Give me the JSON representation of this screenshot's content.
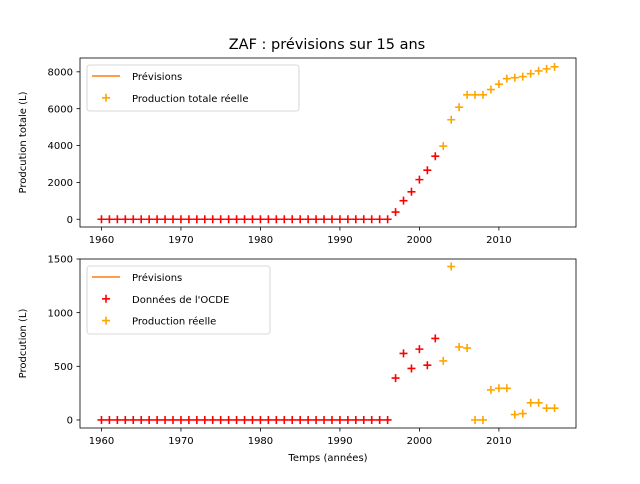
{
  "figure": {
    "title": "ZAF : prévisions sur 15 ans"
  },
  "colors": {
    "forecast": "#ff7f0e",
    "oecd": "#ff0000",
    "actual": "#ffa500"
  },
  "chart_data": [
    {
      "type": "scatter",
      "title": "ZAF : prévisions sur 15 ans",
      "xlabel": "",
      "ylabel": "Prodcution totale (L)",
      "xlim": [
        1957.3,
        2019.7
      ],
      "ylim": [
        -420,
        8750
      ],
      "xticks": [
        1960,
        1970,
        1980,
        1990,
        2000,
        2010
      ],
      "yticks": [
        0,
        2000,
        4000,
        6000,
        8000
      ],
      "legend": {
        "placement": "top-left",
        "entries": [
          "Prévisions",
          "Production totale réelle"
        ]
      },
      "series": [
        {
          "name": "Prévisions",
          "kind": "line",
          "color": "#ff7f0e",
          "x": [],
          "y": []
        },
        {
          "name": "",
          "kind": "plus",
          "color": "#ff0000",
          "x": [
            1960,
            1961,
            1962,
            1963,
            1964,
            1965,
            1966,
            1967,
            1968,
            1969,
            1970,
            1971,
            1972,
            1973,
            1974,
            1975,
            1976,
            1977,
            1978,
            1979,
            1980,
            1981,
            1982,
            1983,
            1984,
            1985,
            1986,
            1987,
            1988,
            1989,
            1990,
            1991,
            1992,
            1993,
            1994,
            1995,
            1996,
            1997,
            1998,
            1999,
            2000,
            2001,
            2002
          ],
          "y": [
            0,
            0,
            0,
            0,
            0,
            0,
            0,
            0,
            0,
            0,
            0,
            0,
            0,
            0,
            0,
            0,
            0,
            0,
            0,
            0,
            0,
            0,
            0,
            0,
            0,
            0,
            0,
            0,
            0,
            0,
            0,
            0,
            0,
            0,
            0,
            0,
            0,
            390,
            1010,
            1490,
            2150,
            2660,
            3420
          ]
        },
        {
          "name": "Production totale réelle",
          "kind": "plus",
          "color": "#ffa500",
          "x": [
            2003,
            2004,
            2005,
            2006,
            2007,
            2008,
            2009,
            2010,
            2011,
            2012,
            2013,
            2014,
            2015,
            2016,
            2017
          ],
          "y": [
            3970,
            5400,
            6080,
            6750,
            6750,
            6750,
            7040,
            7330,
            7630,
            7680,
            7740,
            7900,
            8050,
            8160,
            8270
          ]
        }
      ]
    },
    {
      "type": "scatter",
      "title": "",
      "xlabel": "Temps (années)",
      "ylabel": "Prodcution (L)",
      "xlim": [
        1957.3,
        2019.7
      ],
      "ylim": [
        -75,
        1500
      ],
      "xticks": [
        1960,
        1970,
        1980,
        1990,
        2000,
        2010
      ],
      "yticks": [
        0,
        500,
        1000,
        1500
      ],
      "legend": {
        "placement": "top-left",
        "entries": [
          "Prévisions",
          "Données de l'OCDE",
          "Production réelle"
        ]
      },
      "series": [
        {
          "name": "Prévisions",
          "kind": "line",
          "color": "#ff7f0e",
          "x": [],
          "y": []
        },
        {
          "name": "Données de l'OCDE",
          "kind": "plus",
          "color": "#ff0000",
          "x": [
            1960,
            1961,
            1962,
            1963,
            1964,
            1965,
            1966,
            1967,
            1968,
            1969,
            1970,
            1971,
            1972,
            1973,
            1974,
            1975,
            1976,
            1977,
            1978,
            1979,
            1980,
            1981,
            1982,
            1983,
            1984,
            1985,
            1986,
            1987,
            1988,
            1989,
            1990,
            1991,
            1992,
            1993,
            1994,
            1995,
            1996,
            1997,
            1998,
            1999,
            2000,
            2001,
            2002
          ],
          "y": [
            0,
            0,
            0,
            0,
            0,
            0,
            0,
            0,
            0,
            0,
            0,
            0,
            0,
            0,
            0,
            0,
            0,
            0,
            0,
            0,
            0,
            0,
            0,
            0,
            0,
            0,
            0,
            0,
            0,
            0,
            0,
            0,
            0,
            0,
            0,
            0,
            0,
            390,
            620,
            480,
            660,
            510,
            760
          ]
        },
        {
          "name": "Production réelle",
          "kind": "plus",
          "color": "#ffa500",
          "x": [
            2003,
            2004,
            2005,
            2006,
            2007,
            2008,
            2009,
            2010,
            2011,
            2012,
            2013,
            2014,
            2015,
            2016,
            2017
          ],
          "y": [
            550,
            1430,
            680,
            670,
            0,
            0,
            280,
            295,
            295,
            50,
            60,
            160,
            160,
            110,
            110
          ]
        }
      ]
    }
  ]
}
